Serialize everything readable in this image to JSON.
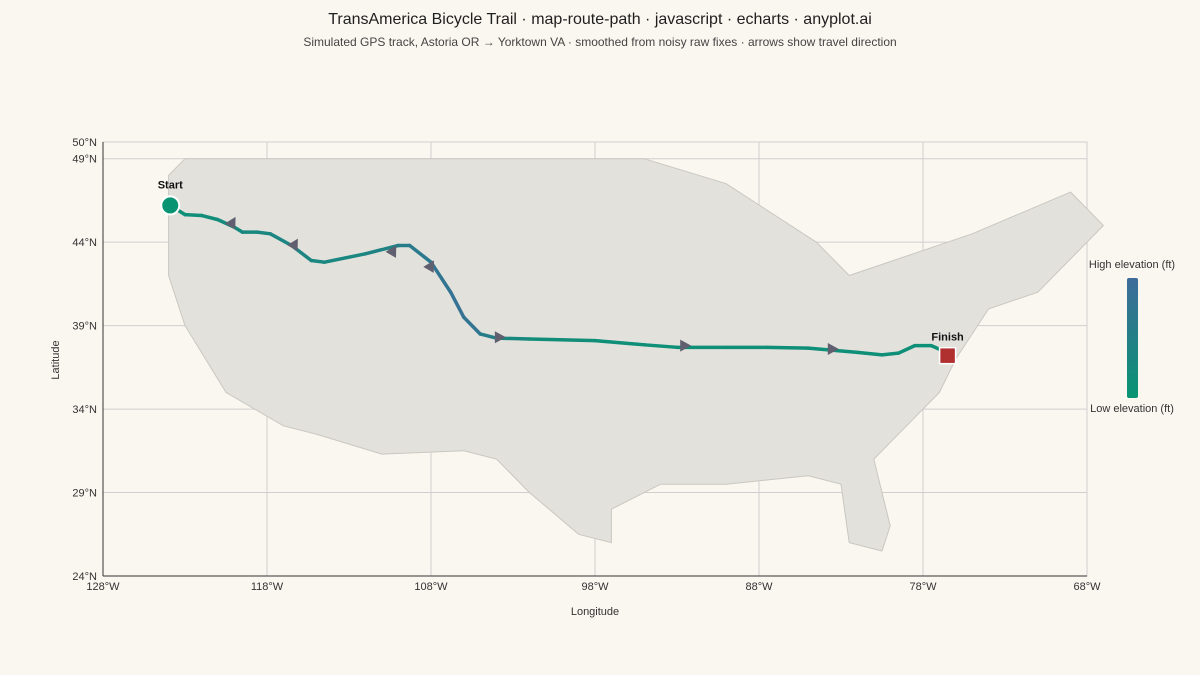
{
  "header": {
    "title": "TransAmerica Bicycle Trail · map-route-path · javascript · echarts · anyplot.ai",
    "subtitle": "Simulated GPS track, Astoria OR → Yorktown VA · smoothed from noisy raw fixes · arrows show travel direction"
  },
  "colors": {
    "background": "#faf7f0",
    "land": "#e3e1dc",
    "low_elevation": "#089473",
    "high_elevation": "#3e6b9a",
    "start_marker": "#089473",
    "finish_marker": "#b02f2f",
    "arrow": "#5f5f70",
    "grid": "#cfcfcf"
  },
  "chart_data": {
    "type": "line",
    "xlabel": "Longitude",
    "ylabel": "Latitude",
    "xlim": [
      -128,
      -68
    ],
    "ylim": [
      24,
      50
    ],
    "x_ticks": [
      -128,
      -118,
      -108,
      -98,
      -88,
      -78,
      -68
    ],
    "x_tick_labels": [
      "128°W",
      "118°W",
      "108°W",
      "98°W",
      "88°W",
      "78°W",
      "68°W"
    ],
    "y_ticks": [
      24,
      29,
      34,
      39,
      44,
      49,
      50
    ],
    "y_tick_labels": [
      "24°N",
      "29°N",
      "34°N",
      "39°N",
      "44°N",
      "49°N",
      "50°N"
    ],
    "grid": true,
    "visual_map": {
      "label_high": "High elevation (ft)",
      "label_low": "Low elevation (ft)",
      "placement": "right"
    },
    "markers": {
      "start": {
        "label": "Start",
        "lon": -123.9,
        "lat": 46.2
      },
      "finish": {
        "label": "Finish",
        "lon": -76.5,
        "lat": 37.2
      }
    },
    "land_outline": [
      [
        -124.0,
        48.0
      ],
      [
        -123.0,
        49.0
      ],
      [
        -95.0,
        49.0
      ],
      [
        -90.0,
        47.5
      ],
      [
        -84.5,
        44.0
      ],
      [
        -82.5,
        42.0
      ],
      [
        -75.0,
        44.5
      ],
      [
        -69.0,
        47.0
      ],
      [
        -67.0,
        45.0
      ],
      [
        -70.0,
        42.0
      ],
      [
        -71.0,
        41.0
      ],
      [
        -74.0,
        40.0
      ],
      [
        -76.0,
        37.0
      ],
      [
        -77.0,
        35.0
      ],
      [
        -79.0,
        33.0
      ],
      [
        -81.0,
        31.0
      ],
      [
        -80.0,
        27.0
      ],
      [
        -80.5,
        25.5
      ],
      [
        -82.5,
        26.0
      ],
      [
        -83.0,
        29.5
      ],
      [
        -85.0,
        30.0
      ],
      [
        -90.0,
        29.5
      ],
      [
        -94.0,
        29.5
      ],
      [
        -97.0,
        28.0
      ],
      [
        -97.0,
        26.0
      ],
      [
        -99.0,
        26.5
      ],
      [
        -102.0,
        29.0
      ],
      [
        -104.0,
        31.0
      ],
      [
        -106.0,
        31.5
      ],
      [
        -111.0,
        31.3
      ],
      [
        -115.0,
        32.5
      ],
      [
        -117.0,
        33.0
      ],
      [
        -120.5,
        35.0
      ],
      [
        -123.0,
        39.0
      ],
      [
        -124.0,
        42.0
      ]
    ],
    "route": [
      {
        "lon": -123.9,
        "lat": 46.2,
        "elev": 0.05
      },
      {
        "lon": -123.0,
        "lat": 45.65,
        "elev": 0.1
      },
      {
        "lon": -122.0,
        "lat": 45.6,
        "elev": 0.15
      },
      {
        "lon": -121.0,
        "lat": 45.35,
        "elev": 0.2
      },
      {
        "lon": -120.0,
        "lat": 44.9,
        "elev": 0.25
      },
      {
        "lon": -119.5,
        "lat": 44.6,
        "elev": 0.28
      },
      {
        "lon": -118.6,
        "lat": 44.6,
        "elev": 0.3
      },
      {
        "lon": -117.8,
        "lat": 44.5,
        "elev": 0.35
      },
      {
        "lon": -116.5,
        "lat": 43.8,
        "elev": 0.4
      },
      {
        "lon": -115.3,
        "lat": 42.9,
        "elev": 0.35
      },
      {
        "lon": -114.5,
        "lat": 42.8,
        "elev": 0.3
      },
      {
        "lon": -112.0,
        "lat": 43.3,
        "elev": 0.35
      },
      {
        "lon": -110.0,
        "lat": 43.8,
        "elev": 0.5
      },
      {
        "lon": -109.3,
        "lat": 43.8,
        "elev": 0.6
      },
      {
        "lon": -108.0,
        "lat": 42.8,
        "elev": 0.7
      },
      {
        "lon": -106.8,
        "lat": 41.0,
        "elev": 0.8
      },
      {
        "lon": -106.0,
        "lat": 39.5,
        "elev": 0.85
      },
      {
        "lon": -105.0,
        "lat": 38.5,
        "elev": 0.7
      },
      {
        "lon": -104.0,
        "lat": 38.25,
        "elev": 0.4
      },
      {
        "lon": -102.0,
        "lat": 38.2,
        "elev": 0.2
      },
      {
        "lon": -98.0,
        "lat": 38.1,
        "elev": 0.15
      },
      {
        "lon": -95.0,
        "lat": 37.85,
        "elev": 0.12
      },
      {
        "lon": -93.0,
        "lat": 37.7,
        "elev": 0.1
      },
      {
        "lon": -90.0,
        "lat": 37.7,
        "elev": 0.1
      },
      {
        "lon": -87.5,
        "lat": 37.7,
        "elev": 0.1
      },
      {
        "lon": -85.0,
        "lat": 37.65,
        "elev": 0.1
      },
      {
        "lon": -82.0,
        "lat": 37.4,
        "elev": 0.12
      },
      {
        "lon": -80.5,
        "lat": 37.25,
        "elev": 0.12
      },
      {
        "lon": -79.5,
        "lat": 37.35,
        "elev": 0.15
      },
      {
        "lon": -78.5,
        "lat": 37.8,
        "elev": 0.12
      },
      {
        "lon": -77.5,
        "lat": 37.8,
        "elev": 0.1
      },
      {
        "lon": -76.8,
        "lat": 37.5,
        "elev": 0.05
      }
    ],
    "arrows": [
      {
        "lon": -120.1,
        "lat": 45.2,
        "dir": 210
      },
      {
        "lon": -116.3,
        "lat": 43.9,
        "dir": 210
      },
      {
        "lon": -110.3,
        "lat": 43.5,
        "dir": 210
      },
      {
        "lon": -108.0,
        "lat": 42.6,
        "dir": 210
      },
      {
        "lon": -103.8,
        "lat": 38.3,
        "dir": 270
      },
      {
        "lon": -92.5,
        "lat": 37.8,
        "dir": 270
      },
      {
        "lon": -83.5,
        "lat": 37.6,
        "dir": 270
      }
    ]
  }
}
